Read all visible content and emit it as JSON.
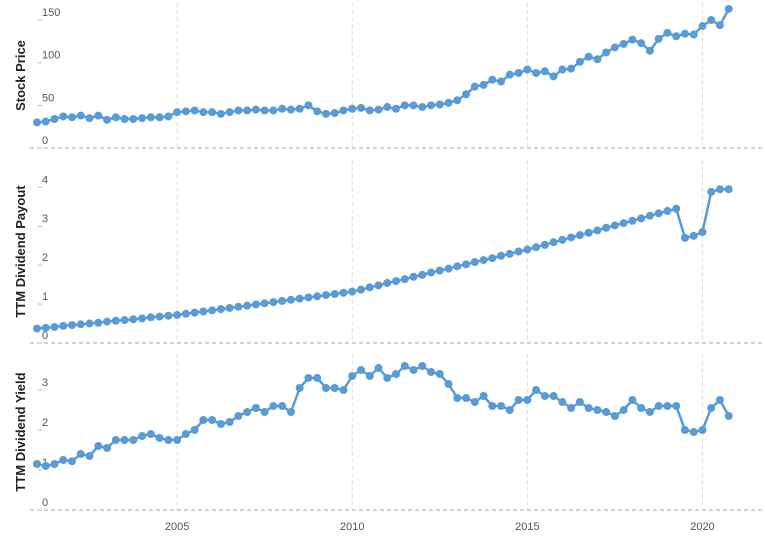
{
  "chart_data": [
    {
      "type": "line",
      "ylabel": "Stock Price",
      "color": "#5b9bd5",
      "x": [
        2001,
        2001.25,
        2001.5,
        2001.75,
        2002,
        2002.25,
        2002.5,
        2002.75,
        2003,
        2003.25,
        2003.5,
        2003.75,
        2004,
        2004.25,
        2004.5,
        2004.75,
        2005,
        2005.25,
        2005.5,
        2005.75,
        2006,
        2006.25,
        2006.5,
        2006.75,
        2007,
        2007.25,
        2007.5,
        2007.75,
        2008,
        2008.25,
        2008.5,
        2008.75,
        2009,
        2009.25,
        2009.5,
        2009.75,
        2010,
        2010.25,
        2010.5,
        2010.75,
        2011,
        2011.25,
        2011.5,
        2011.75,
        2012,
        2012.25,
        2012.5,
        2012.75,
        2013,
        2013.25,
        2013.5,
        2013.75,
        2014,
        2014.25,
        2014.5,
        2014.75,
        2015,
        2015.25,
        2015.5,
        2015.75,
        2016,
        2016.25,
        2016.5,
        2016.75,
        2017,
        2017.25,
        2017.5,
        2017.75,
        2018,
        2018.25,
        2018.5,
        2018.75,
        2019,
        2019.25,
        2019.5,
        2019.75,
        2020,
        2020.25,
        2020.5,
        2020.75
      ],
      "values": [
        30,
        31,
        34,
        37,
        36,
        38,
        35,
        38,
        33,
        36,
        34,
        34,
        35,
        36,
        36,
        37,
        42,
        43,
        44,
        42,
        42,
        40,
        42,
        44,
        44,
        45,
        44,
        44,
        46,
        45,
        46,
        50,
        43,
        40,
        41,
        44,
        46,
        47,
        44,
        45,
        48,
        46,
        50,
        50,
        48,
        50,
        51,
        53,
        56,
        63,
        72,
        74,
        80,
        78,
        86,
        88,
        92,
        88,
        90,
        84,
        92,
        93,
        101,
        107,
        104,
        112,
        118,
        122,
        127,
        123,
        114,
        128,
        135,
        131,
        134,
        133,
        143,
        150,
        144,
        163
      ],
      "ylim": [
        0,
        170
      ],
      "yticks": [
        0,
        50,
        100,
        150
      ],
      "xlim": [
        2000.8,
        2021.7
      ]
    },
    {
      "type": "line",
      "ylabel": "TTM Dividend Payout",
      "color": "#5b9bd5",
      "x": [
        2001,
        2001.25,
        2001.5,
        2001.75,
        2002,
        2002.25,
        2002.5,
        2002.75,
        2003,
        2003.25,
        2003.5,
        2003.75,
        2004,
        2004.25,
        2004.5,
        2004.75,
        2005,
        2005.25,
        2005.5,
        2005.75,
        2006,
        2006.25,
        2006.5,
        2006.75,
        2007,
        2007.25,
        2007.5,
        2007.75,
        2008,
        2008.25,
        2008.5,
        2008.75,
        2009,
        2009.25,
        2009.5,
        2009.75,
        2010,
        2010.25,
        2010.5,
        2010.75,
        2011,
        2011.25,
        2011.5,
        2011.75,
        2012,
        2012.25,
        2012.5,
        2012.75,
        2013,
        2013.25,
        2013.5,
        2013.75,
        2014,
        2014.25,
        2014.5,
        2014.75,
        2015,
        2015.25,
        2015.5,
        2015.75,
        2016,
        2016.25,
        2016.5,
        2016.75,
        2017,
        2017.25,
        2017.5,
        2017.75,
        2018,
        2018.25,
        2018.5,
        2018.75,
        2019,
        2019.25,
        2019.5,
        2019.75,
        2020,
        2020.25,
        2020.5,
        2020.75
      ],
      "values": [
        0.37,
        0.39,
        0.41,
        0.44,
        0.46,
        0.48,
        0.5,
        0.52,
        0.55,
        0.57,
        0.59,
        0.61,
        0.63,
        0.66,
        0.68,
        0.7,
        0.72,
        0.75,
        0.78,
        0.81,
        0.84,
        0.87,
        0.9,
        0.93,
        0.96,
        0.99,
        1.02,
        1.05,
        1.08,
        1.11,
        1.14,
        1.17,
        1.2,
        1.23,
        1.26,
        1.29,
        1.32,
        1.37,
        1.43,
        1.48,
        1.54,
        1.59,
        1.64,
        1.7,
        1.75,
        1.81,
        1.86,
        1.91,
        1.97,
        2.02,
        2.08,
        2.13,
        2.18,
        2.24,
        2.29,
        2.35,
        2.4,
        2.46,
        2.52,
        2.59,
        2.65,
        2.71,
        2.77,
        2.83,
        2.89,
        2.96,
        3.02,
        3.08,
        3.14,
        3.2,
        3.27,
        3.33,
        3.39,
        3.45,
        2.7,
        2.75,
        2.85,
        3.88,
        3.95,
        3.95
      ],
      "ylim": [
        0,
        4.7
      ],
      "yticks": [
        0,
        1,
        2,
        3,
        4
      ],
      "xlim": [
        2000.8,
        2021.7
      ]
    },
    {
      "type": "line",
      "ylabel": "TTM Dividend Yield",
      "color": "#5b9bd5",
      "x": [
        2001,
        2001.25,
        2001.5,
        2001.75,
        2002,
        2002.25,
        2002.5,
        2002.75,
        2003,
        2003.25,
        2003.5,
        2003.75,
        2004,
        2004.25,
        2004.5,
        2004.75,
        2005,
        2005.25,
        2005.5,
        2005.75,
        2006,
        2006.25,
        2006.5,
        2006.75,
        2007,
        2007.25,
        2007.5,
        2007.75,
        2008,
        2008.25,
        2008.5,
        2008.75,
        2009,
        2009.25,
        2009.5,
        2009.75,
        2010,
        2010.25,
        2010.5,
        2010.75,
        2011,
        2011.25,
        2011.5,
        2011.75,
        2012,
        2012.25,
        2012.5,
        2012.75,
        2013,
        2013.25,
        2013.5,
        2013.75,
        2014,
        2014.25,
        2014.5,
        2014.75,
        2015,
        2015.25,
        2015.5,
        2015.75,
        2016,
        2016.25,
        2016.5,
        2016.75,
        2017,
        2017.25,
        2017.5,
        2017.75,
        2018,
        2018.25,
        2018.5,
        2018.75,
        2019,
        2019.25,
        2019.5,
        2019.75,
        2020,
        2020.25,
        2020.5,
        2020.75
      ],
      "values": [
        1.15,
        1.1,
        1.15,
        1.25,
        1.22,
        1.4,
        1.35,
        1.6,
        1.55,
        1.75,
        1.75,
        1.75,
        1.85,
        1.9,
        1.8,
        1.75,
        1.75,
        1.9,
        2.0,
        2.25,
        2.25,
        2.15,
        2.2,
        2.35,
        2.45,
        2.55,
        2.45,
        2.6,
        2.6,
        2.45,
        3.05,
        3.3,
        3.3,
        3.05,
        3.05,
        3.0,
        3.35,
        3.5,
        3.35,
        3.55,
        3.3,
        3.4,
        3.6,
        3.5,
        3.6,
        3.45,
        3.4,
        3.15,
        2.8,
        2.8,
        2.7,
        2.85,
        2.6,
        2.6,
        2.5,
        2.75,
        2.75,
        3.0,
        2.85,
        2.85,
        2.7,
        2.55,
        2.7,
        2.55,
        2.5,
        2.45,
        2.35,
        2.5,
        2.75,
        2.55,
        2.45,
        2.6,
        2.6,
        2.6,
        2.0,
        1.95,
        2.0,
        2.55,
        2.75,
        2.35
      ],
      "ylim": [
        0,
        3.9
      ],
      "yticks": [
        0,
        1,
        2,
        3
      ],
      "xlim": [
        2000.8,
        2021.7
      ],
      "xticks": [
        2005,
        2010,
        2015,
        2020
      ]
    }
  ]
}
